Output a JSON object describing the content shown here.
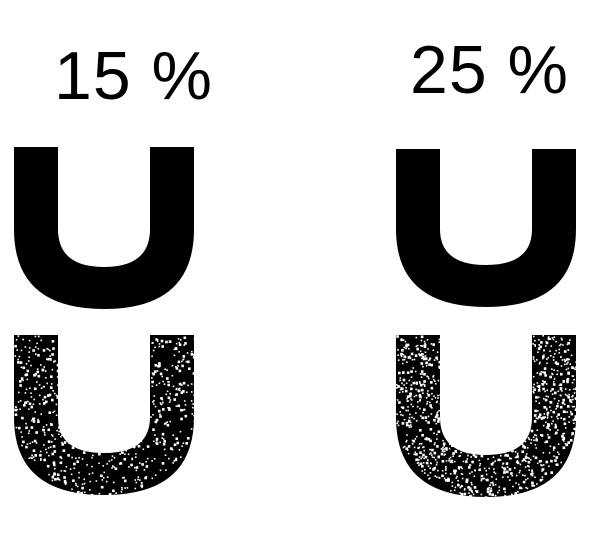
{
  "panels": [
    {
      "label": "15 %",
      "noise_level": 0.15,
      "glyph_letter": "U"
    },
    {
      "label": "25 %",
      "noise_level": 0.25,
      "glyph_letter": "U"
    }
  ]
}
